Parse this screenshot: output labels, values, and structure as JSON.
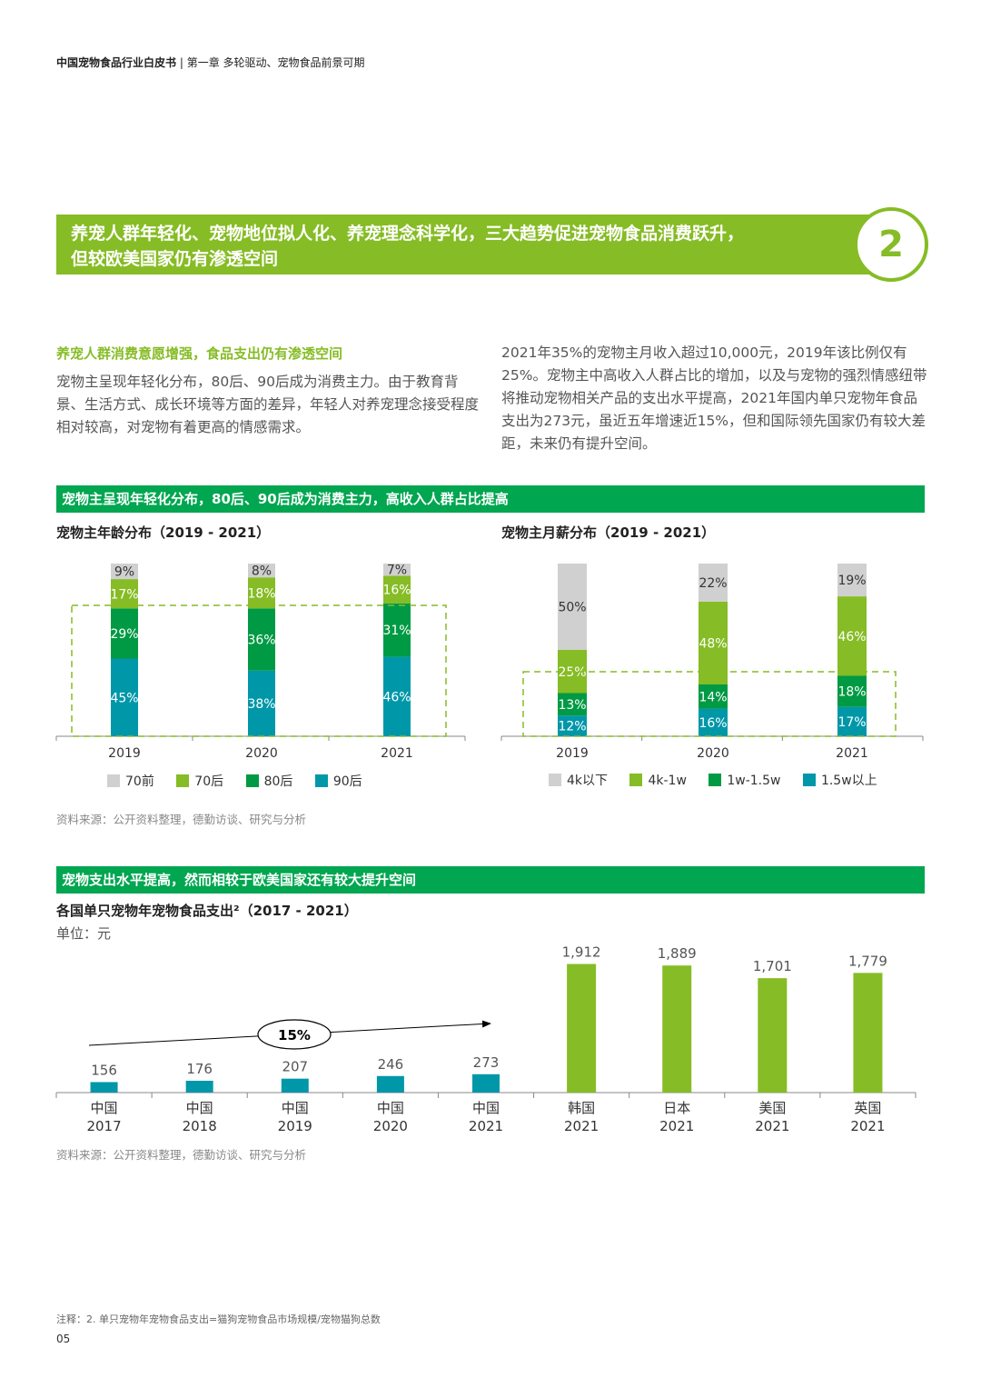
{
  "header": {
    "report": "中国宠物食品行业白皮书",
    "separator": "|",
    "chapter": "第一章 多轮驱动、宠物食品前景可期"
  },
  "banner": {
    "line1": "养宠人群年轻化、宠物地位拟人化、养宠理念科学化，三大趋势促进宠物食品消费跃升，",
    "line2": "但较欧美国家仍有渗透空间",
    "number": "2"
  },
  "intro": {
    "subtitle": "养宠人群消费意愿增强，食品支出仍有渗透空间",
    "left": "宠物主呈现年轻化分布，80后、90后成为消费主力。由于教育背景、生活方式、成长环境等方面的差异，年轻人对养宠理念接受程度相对较高，对宠物有着更高的情感需求。",
    "right": "2021年35%的宠物主月收入超过10,000元，2019年该比例仅有25%。宠物主中高收入人群占比的增加，以及与宠物的强烈情感纽带将推动宠物相关产品的支出水平提高，2021年国内单只宠物年食品支出为273元，虽近五年增速近15%，但和国际领先国家仍有较大差距，未来仍有提升空间。"
  },
  "section1": {
    "title": "宠物主呈现年轻化分布，80后、90后成为消费主力，高收入人群占比提高",
    "source": "资料来源：公开资料整理，德勤访谈、研究与分析"
  },
  "section2": {
    "title": "宠物支出水平提高，然而相较于欧美国家还有较大提升空间",
    "source": "资料来源：公开资料整理，德勤访谈、研究与分析"
  },
  "colors": {
    "gray": "#d0d0d0",
    "lightgreen": "#86bc25",
    "green": "#009a44",
    "teal": "#0097a9"
  },
  "chart_data": [
    {
      "type": "bar",
      "stacked": true,
      "title": "宠物主年龄分布（2019 - 2021）",
      "categories": [
        "2019",
        "2020",
        "2021"
      ],
      "series": [
        {
          "name": "90后",
          "values": [
            45,
            38,
            46
          ],
          "color": "#0097a9"
        },
        {
          "name": "80后",
          "values": [
            29,
            36,
            31
          ],
          "color": "#009a44"
        },
        {
          "name": "70后",
          "values": [
            17,
            18,
            16
          ],
          "color": "#86bc25"
        },
        {
          "name": "70前",
          "values": [
            9,
            8,
            7
          ],
          "color": "#d0d0d0"
        }
      ],
      "legend": [
        "70前",
        "70后",
        "80后",
        "90后"
      ],
      "unit": "%"
    },
    {
      "type": "bar",
      "stacked": true,
      "title": "宠物主月薪分布（2019 - 2021）",
      "categories": [
        "2019",
        "2020",
        "2021"
      ],
      "series": [
        {
          "name": "1.5w以上",
          "values": [
            12,
            16,
            17
          ],
          "color": "#0097a9"
        },
        {
          "name": "1w-1.5w",
          "values": [
            13,
            14,
            18
          ],
          "color": "#009a44"
        },
        {
          "name": "4k-1w",
          "values": [
            25,
            48,
            46
          ],
          "color": "#86bc25"
        },
        {
          "name": "4k以下",
          "values": [
            50,
            22,
            19
          ],
          "color": "#d0d0d0"
        }
      ],
      "legend": [
        "4k以下",
        "4k-1w",
        "1w-1.5w",
        "1.5w以上"
      ],
      "unit": "%"
    },
    {
      "type": "bar",
      "title": "各国单只宠物年宠物食品支出²（2017 - 2021）",
      "unit_label": "单位：元",
      "categories": [
        {
          "country": "中国",
          "year": "2017"
        },
        {
          "country": "中国",
          "year": "2018"
        },
        {
          "country": "中国",
          "year": "2019"
        },
        {
          "country": "中国",
          "year": "2020"
        },
        {
          "country": "中国",
          "year": "2021"
        },
        {
          "country": "韩国",
          "year": "2021"
        },
        {
          "country": "日本",
          "year": "2021"
        },
        {
          "country": "美国",
          "year": "2021"
        },
        {
          "country": "英国",
          "year": "2021"
        }
      ],
      "values": [
        156,
        176,
        207,
        246,
        273,
        1912,
        1889,
        1701,
        1779
      ],
      "labels": [
        "156",
        "176",
        "207",
        "246",
        "273",
        "1,912",
        "1,889",
        "1,701",
        "1,779"
      ],
      "growth_annotation": "15%"
    }
  ],
  "footnote": "注释：2. 单只宠物年宠物食品支出=猫狗宠物食品市场规模/宠物猫狗总数",
  "page_number": "05"
}
